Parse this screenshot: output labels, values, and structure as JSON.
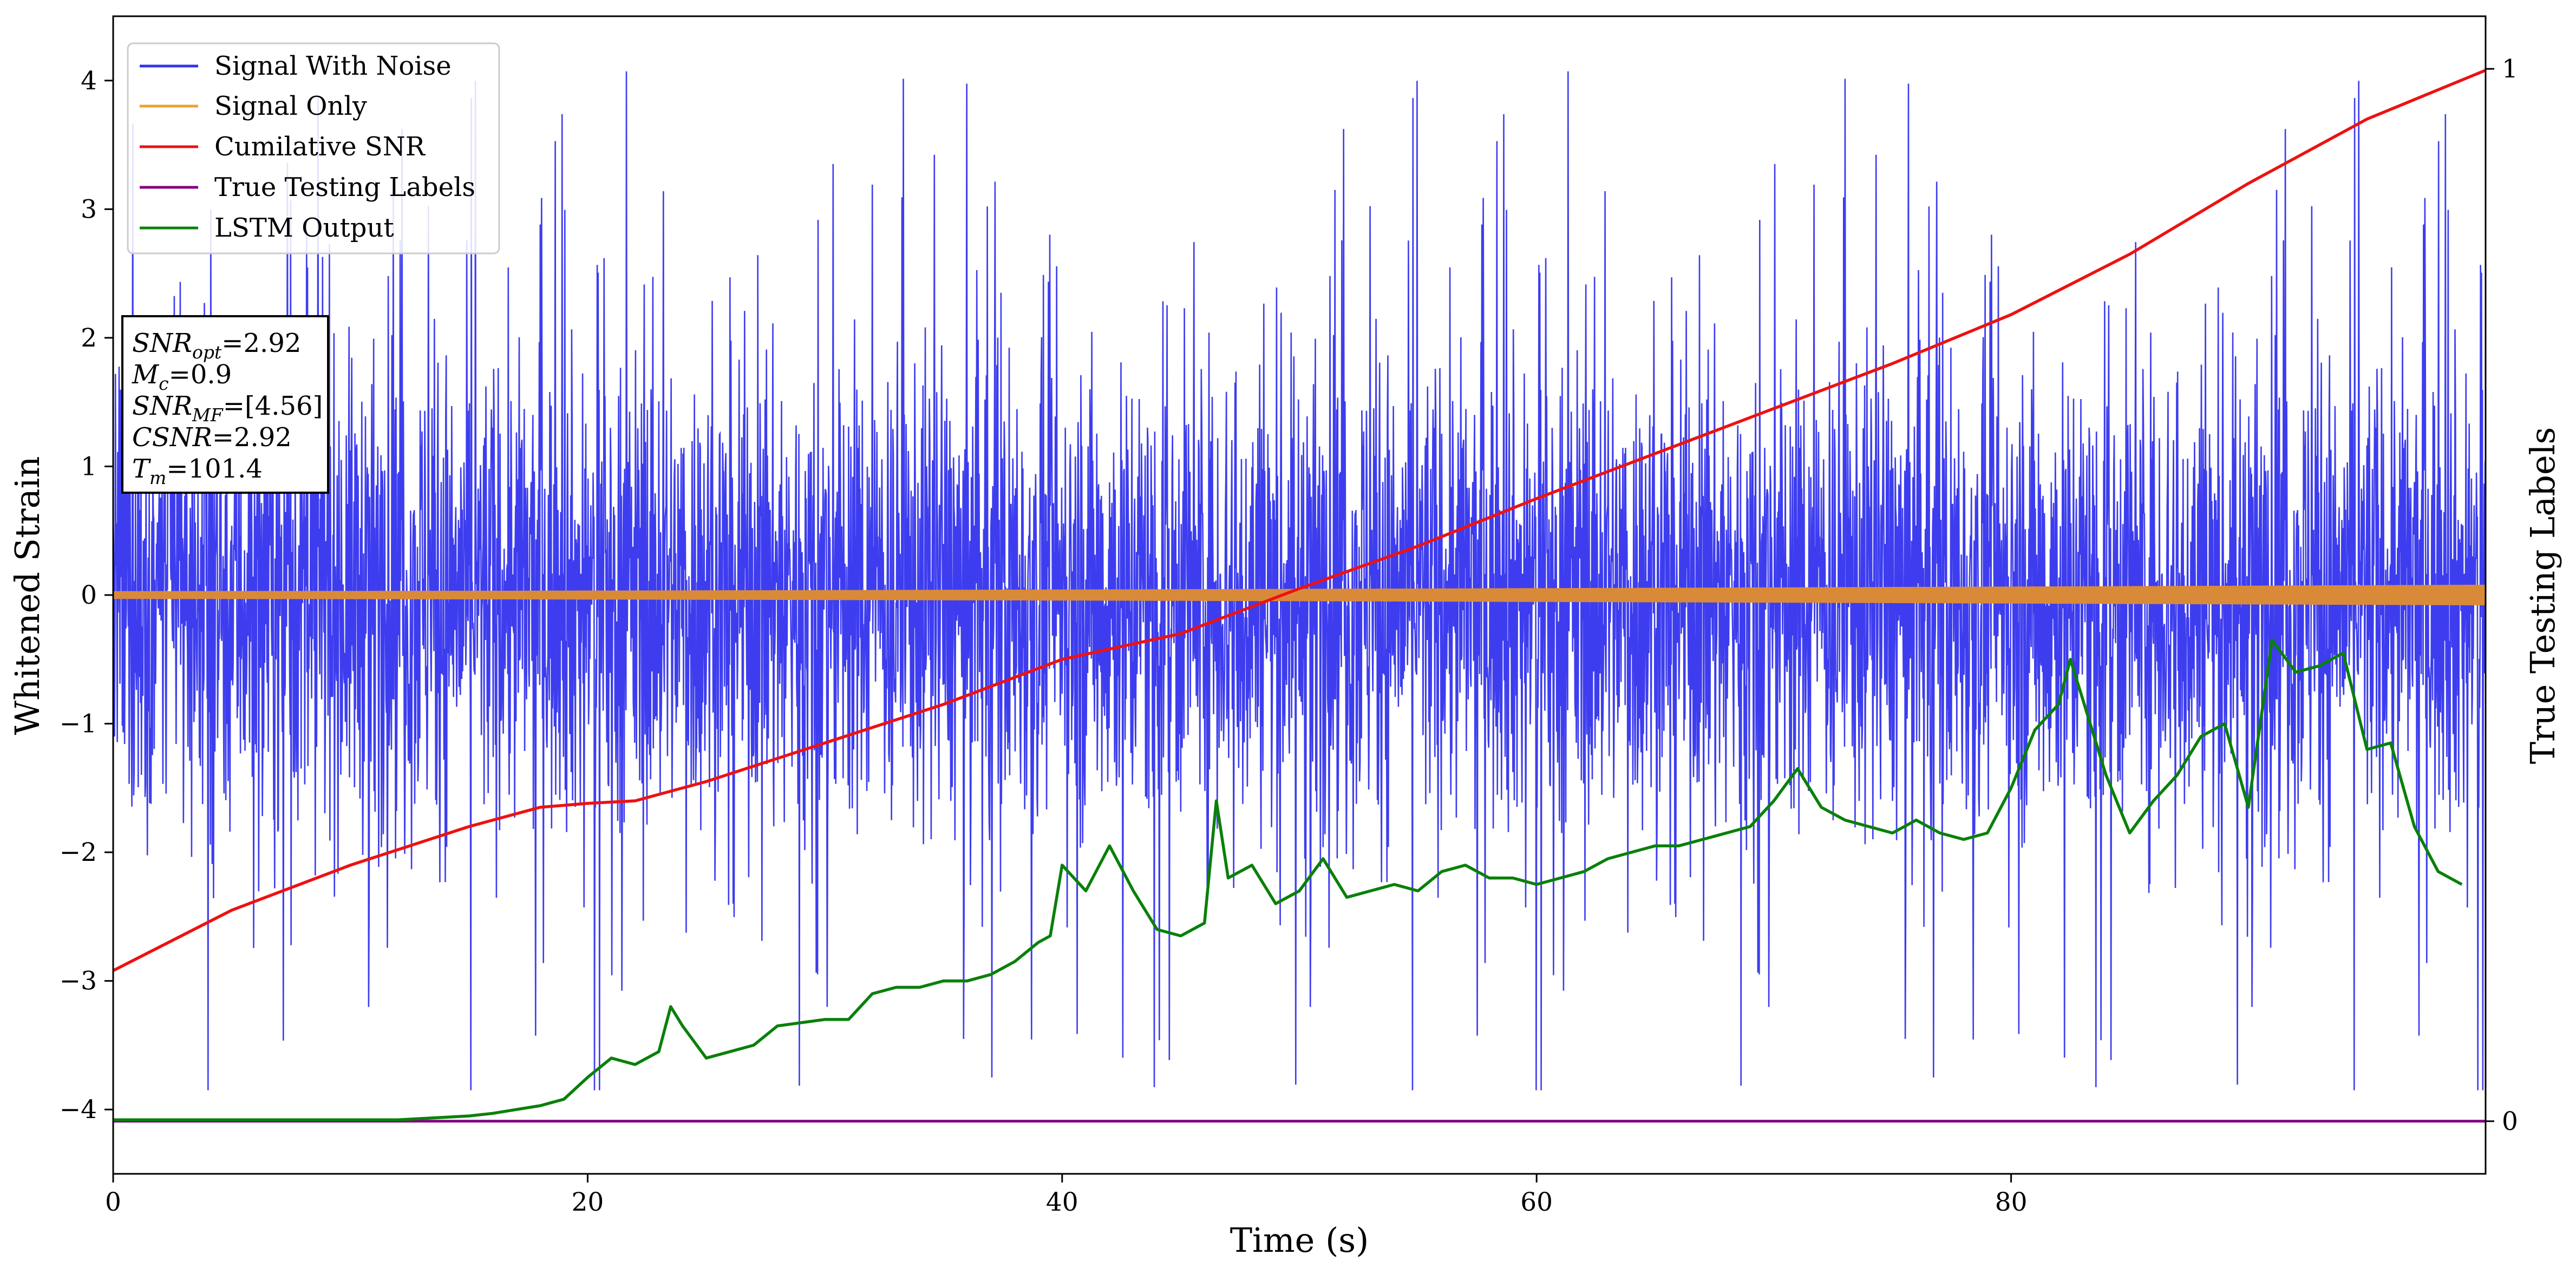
{
  "chart_data": {
    "type": "line",
    "xlabel": "Time (s)",
    "ylabel": "Whitened Strain",
    "ylabel_right": "True Testing Labels",
    "xlim": [
      0,
      100
    ],
    "ylim": [
      -4.5,
      4.5
    ],
    "ylim_right": [
      -0.05,
      1.05
    ],
    "x_ticks": [
      0,
      20,
      40,
      60,
      80
    ],
    "y_ticks": [
      -4,
      -3,
      -2,
      -1,
      0,
      1,
      2,
      3,
      4
    ],
    "y_ticks_right": [
      0,
      1
    ],
    "legend_position": "top-left",
    "grid": false,
    "colors": {
      "noise": "#3333ee",
      "signal": "#f0a030",
      "signal_fill": "#d98a38",
      "csnr": "#ee1111",
      "labels": "#800080",
      "lstm": "#0a800a"
    },
    "series": [
      {
        "name": "Signal With Noise",
        "axis": "left",
        "approx_envelope": [
          -3.8,
          4.1
        ]
      },
      {
        "name": "Signal Only",
        "axis": "left",
        "approx_envelope": [
          -0.08,
          0.08
        ]
      },
      {
        "name": "Cumilative SNR",
        "axis": "left",
        "x": [
          0,
          5,
          10,
          15,
          18,
          20,
          22,
          25,
          30,
          35,
          40,
          45,
          50,
          55,
          60,
          65,
          70,
          75,
          80,
          85,
          90,
          95,
          100
        ],
        "y": [
          -2.92,
          -2.45,
          -2.1,
          -1.8,
          -1.65,
          -1.62,
          -1.6,
          -1.45,
          -1.15,
          -0.85,
          -0.5,
          -0.3,
          0.05,
          0.38,
          0.75,
          1.1,
          1.45,
          1.8,
          2.18,
          2.65,
          3.2,
          3.7,
          4.08
        ]
      },
      {
        "name": "True Testing Labels",
        "axis": "right",
        "x": [
          0,
          100
        ],
        "y": [
          0,
          0
        ]
      },
      {
        "name": "LSTM Output",
        "axis": "left",
        "x": [
          0,
          12,
          13,
          14,
          15,
          16,
          17,
          18,
          19,
          20,
          21,
          22,
          23,
          23.5,
          24,
          25,
          26,
          27,
          28,
          30,
          31,
          32,
          33,
          34,
          35,
          36,
          37,
          38,
          39,
          39.5,
          40,
          41,
          42,
          43,
          44,
          45,
          46,
          46.5,
          47,
          48,
          49,
          50,
          51,
          52,
          53,
          54,
          55,
          56,
          57,
          58,
          59,
          60,
          61,
          62,
          63,
          64,
          65,
          66,
          67,
          68,
          69,
          70,
          71,
          72,
          73,
          74,
          75,
          76,
          77,
          78,
          79,
          80,
          81,
          82,
          82.5,
          83,
          84,
          85,
          86,
          87,
          88,
          89,
          90,
          91,
          92,
          93,
          94,
          95,
          96,
          97,
          98,
          99
        ],
        "y": [
          -4.08,
          -4.08,
          -4.07,
          -4.06,
          -4.05,
          -4.03,
          -4.0,
          -3.97,
          -3.92,
          -3.75,
          -3.6,
          -3.65,
          -3.55,
          -3.2,
          -3.35,
          -3.6,
          -3.55,
          -3.5,
          -3.35,
          -3.3,
          -3.3,
          -3.1,
          -3.05,
          -3.05,
          -3.0,
          -3.0,
          -2.95,
          -2.85,
          -2.7,
          -2.65,
          -2.1,
          -2.3,
          -1.95,
          -2.3,
          -2.6,
          -2.65,
          -2.55,
          -1.6,
          -2.2,
          -2.1,
          -2.4,
          -2.3,
          -2.05,
          -2.35,
          -2.3,
          -2.25,
          -2.3,
          -2.15,
          -2.1,
          -2.2,
          -2.2,
          -2.25,
          -2.2,
          -2.15,
          -2.05,
          -2.0,
          -1.95,
          -1.95,
          -1.9,
          -1.85,
          -1.8,
          -1.6,
          -1.35,
          -1.65,
          -1.75,
          -1.8,
          -1.85,
          -1.75,
          -1.85,
          -1.9,
          -1.85,
          -1.5,
          -1.05,
          -0.85,
          -0.5,
          -0.8,
          -1.4,
          -1.85,
          -1.6,
          -1.4,
          -1.1,
          -1.0,
          -1.65,
          -0.35,
          -0.6,
          -0.55,
          -0.45,
          -1.2,
          -1.15,
          -1.8,
          -2.15,
          -2.25
        ]
      }
    ],
    "annotation_box": {
      "lines": [
        {
          "main": "SNR",
          "sub": "opt",
          "value": "=2.92"
        },
        {
          "main": "M",
          "sub": "c",
          "value": "=0.9"
        },
        {
          "main": "SNR",
          "sub": "MF",
          "value": "=[4.56]"
        },
        {
          "main": "CSNR",
          "sub": "",
          "value": "=2.92"
        },
        {
          "main": "T",
          "sub": "m",
          "value": "=101.4"
        }
      ]
    }
  }
}
